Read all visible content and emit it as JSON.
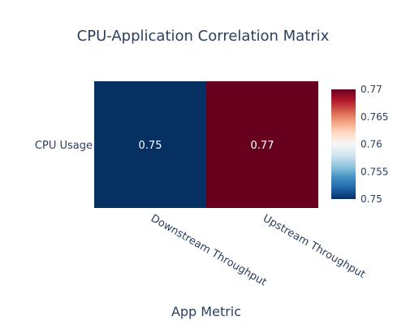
{
  "chart_data": {
    "type": "heatmap",
    "title": "CPU-Application Correlation Matrix",
    "xlabel": "App Metric",
    "ylabel": "",
    "x_categories": [
      "Downstream Throughput",
      "Upstream Throughput"
    ],
    "y_categories": [
      "CPU Usage"
    ],
    "z": [
      [
        0.75,
        0.77
      ]
    ],
    "cell_labels": [
      [
        "0.75",
        "0.77"
      ]
    ],
    "colorscale": "RdBu (reversed)",
    "colors": {
      "low": "#053061",
      "high": "#67001f"
    },
    "zrange": [
      0.75,
      0.77
    ],
    "colorbar": {
      "ticks": [
        "0.75",
        "0.755",
        "0.76",
        "0.765",
        "0.77"
      ],
      "tick_values": [
        0.75,
        0.755,
        0.76,
        0.765,
        0.77
      ],
      "position": "right"
    }
  }
}
